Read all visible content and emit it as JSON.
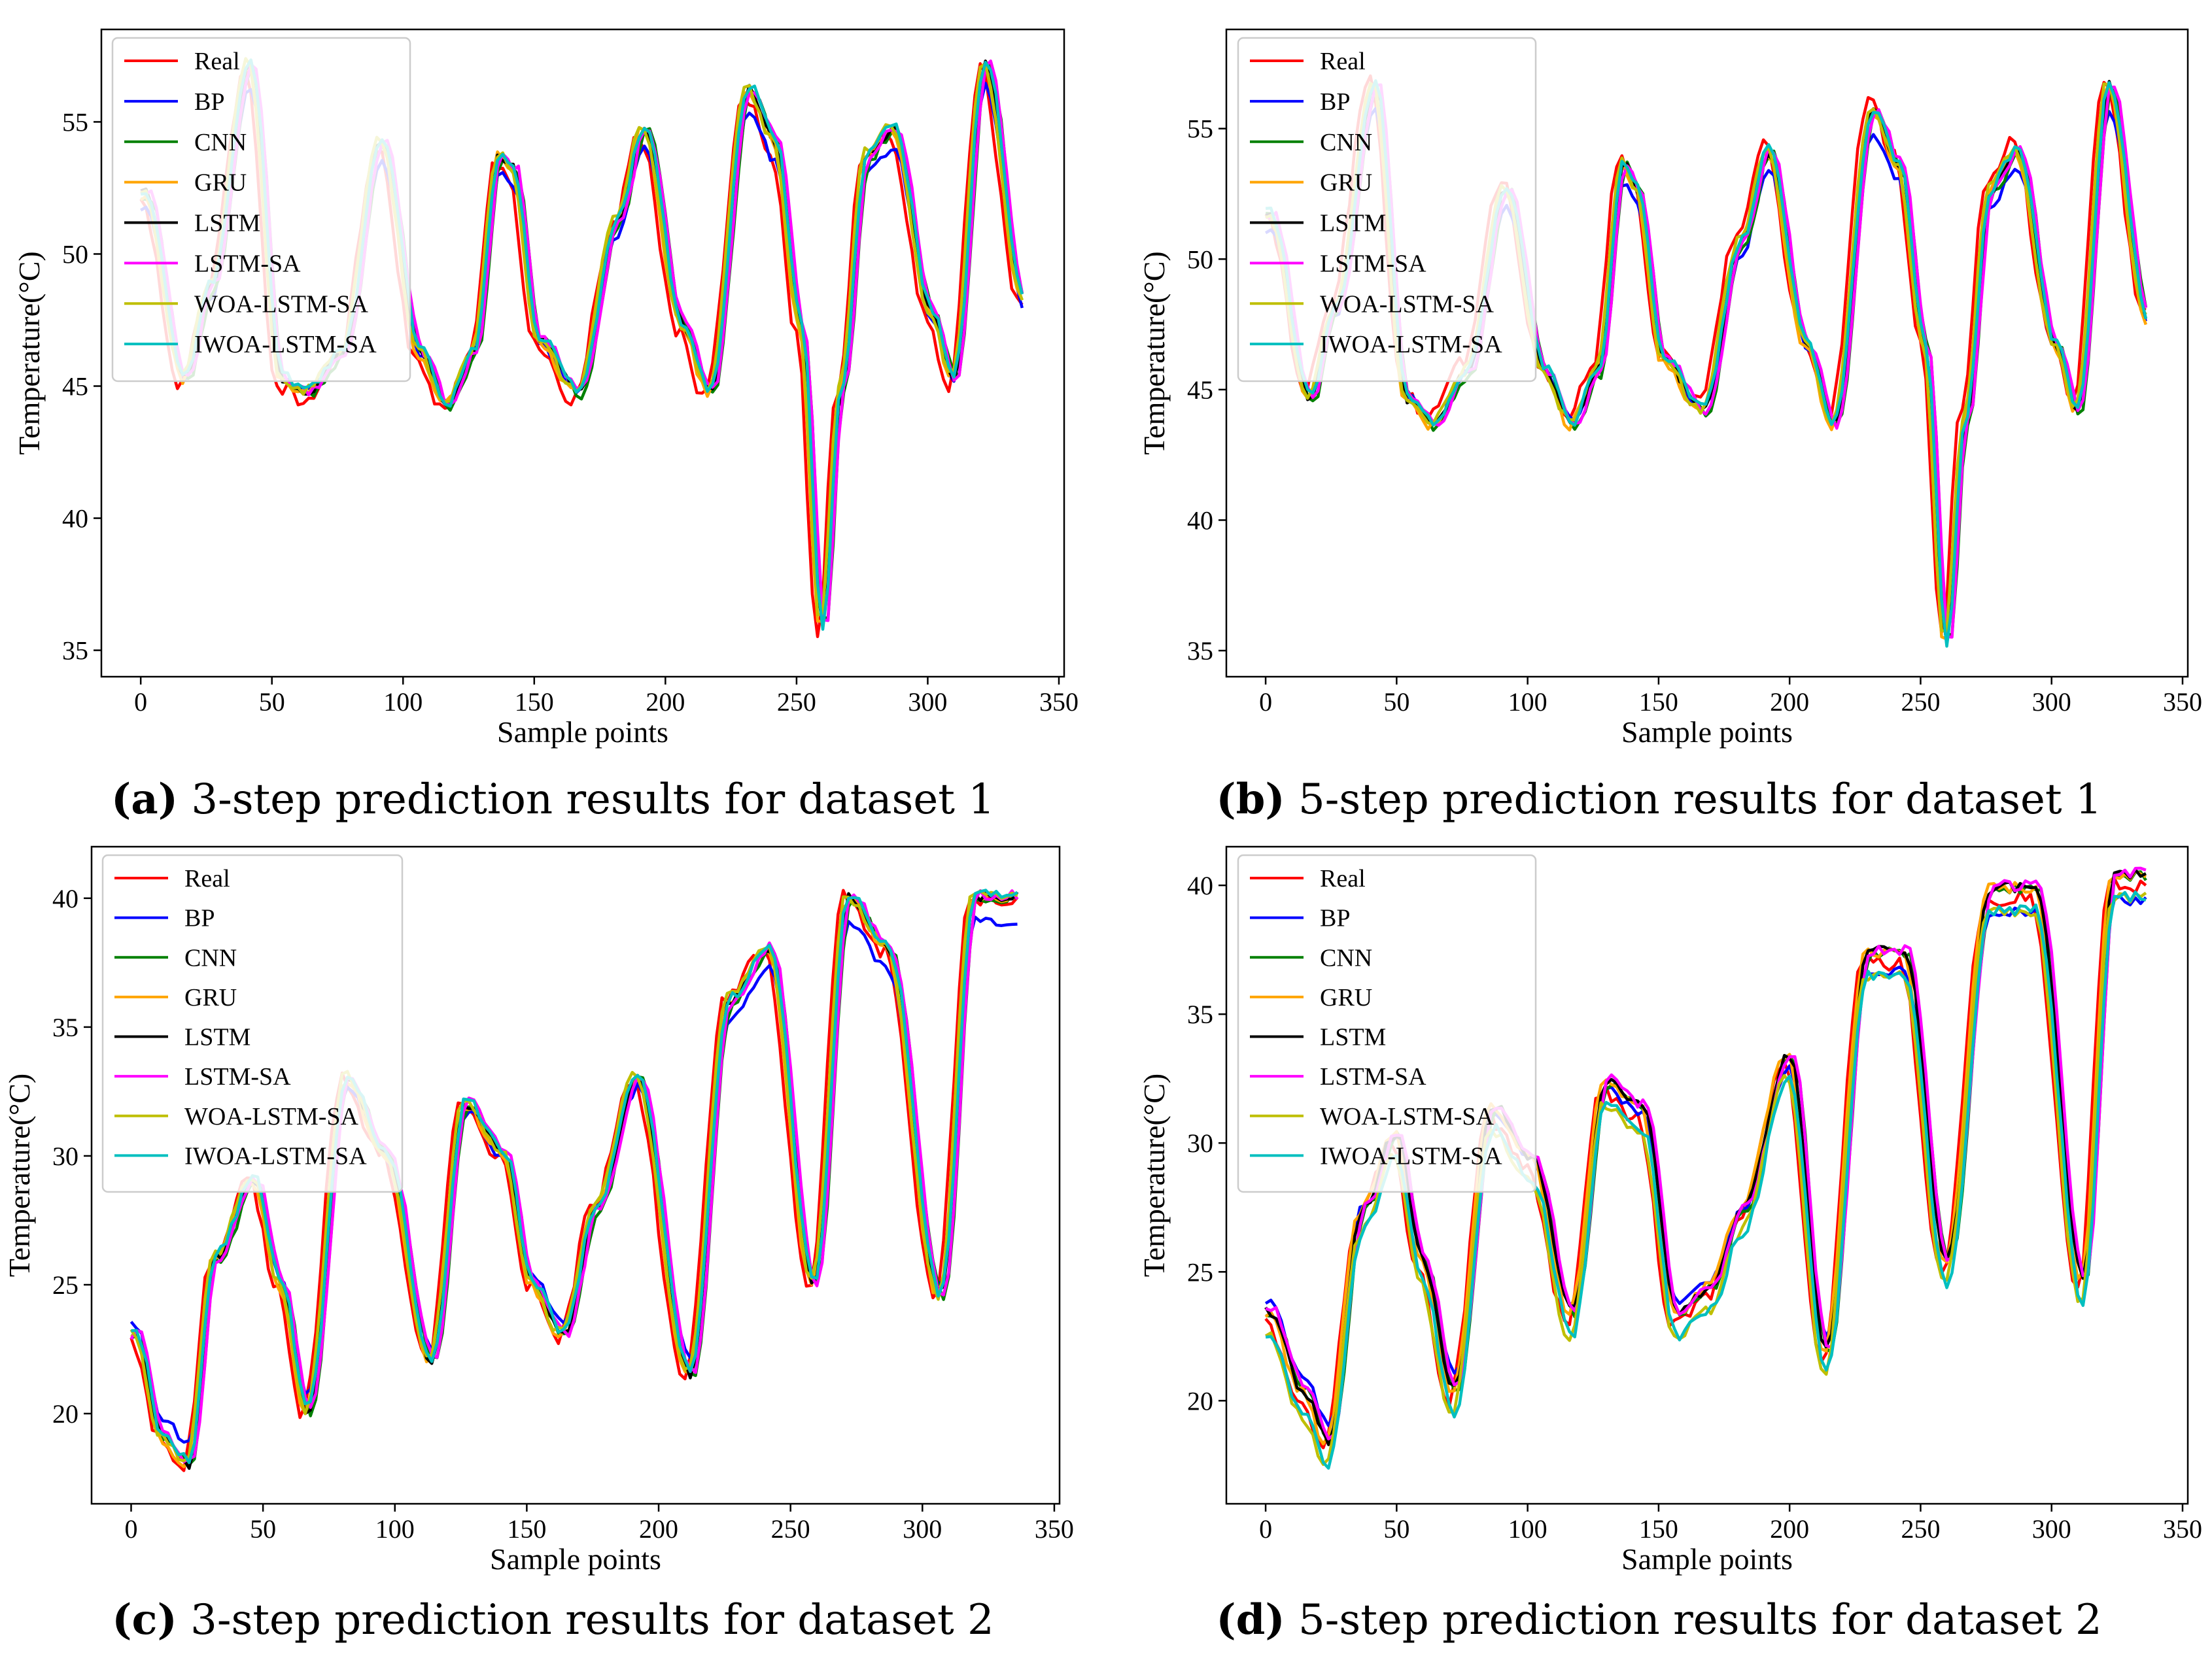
{
  "figure": {
    "colors": {
      "Real": "#ff0000",
      "BP": "#0000ff",
      "CNN": "#008000",
      "GRU": "#ffa500",
      "LSTM": "#000000",
      "LSTM-SA": "#ff00ff",
      "WOA-LSTM-SA": "#bfbf00",
      "IWOA-LSTM-SA": "#00bfbf"
    }
  },
  "captions": [
    {
      "letter": "(a)",
      "text": "3-step prediction results for dataset 1"
    },
    {
      "letter": "(b)",
      "text": "5-step prediction results for dataset 1"
    },
    {
      "letter": "(c)",
      "text": "3-step prediction results for dataset 2"
    },
    {
      "letter": "(d)",
      "text": "5-step prediction results for dataset 2"
    }
  ],
  "chart_data": [
    {
      "type": "line",
      "id": "a",
      "xlabel": "Sample points",
      "ylabel": "Temperature(°C)",
      "xlim": [
        -15,
        352
      ],
      "ylim": [
        34,
        58.5
      ],
      "xticks": [
        0,
        50,
        100,
        150,
        200,
        250,
        300,
        350
      ],
      "yticks": [
        35,
        40,
        45,
        50,
        55
      ],
      "legend": "top-left",
      "series_names": [
        "Real",
        "BP",
        "CNN",
        "GRU",
        "LSTM",
        "LSTM-SA",
        "WOA-LSTM-SA",
        "IWOA-LSTM-SA"
      ],
      "x": [
        0,
        15,
        25,
        40,
        52,
        62,
        75,
        90,
        105,
        115,
        125,
        135,
        140,
        150,
        165,
        180,
        190,
        205,
        215,
        230,
        240,
        250,
        258,
        265,
        275,
        285,
        300,
        308,
        320,
        335
      ],
      "real_y": [
        52,
        45,
        48.5,
        57,
        45,
        44.5,
        46,
        54,
        46,
        44,
        46,
        53.5,
        53,
        46.5,
        44.5,
        51,
        54.5,
        47,
        44.5,
        56,
        54,
        47,
        35.5,
        44.5,
        53.5,
        54.5,
        47.5,
        45,
        57,
        48
      ]
    },
    {
      "type": "line",
      "id": "b",
      "xlabel": "Sample points",
      "ylabel": "Temperature(°C)",
      "xlim": [
        -15,
        352
      ],
      "ylim": [
        34,
        58.8
      ],
      "xticks": [
        0,
        50,
        100,
        150,
        200,
        250,
        300,
        350
      ],
      "yticks": [
        35,
        40,
        45,
        50,
        55
      ],
      "legend": "top-left",
      "series_names": [
        "Real",
        "BP",
        "CNN",
        "GRU",
        "LSTM",
        "LSTM-SA",
        "WOA-LSTM-SA",
        "IWOA-LSTM-SA"
      ],
      "x": [
        0,
        15,
        25,
        40,
        52,
        62,
        75,
        90,
        105,
        115,
        125,
        135,
        140,
        150,
        165,
        180,
        190,
        205,
        215,
        230,
        240,
        250,
        258,
        265,
        275,
        285,
        300,
        308,
        320,
        335
      ],
      "real_y": [
        52,
        45,
        48.5,
        57,
        45,
        44,
        46,
        53,
        46,
        44,
        46,
        54,
        53,
        46.5,
        44.5,
        51,
        54.5,
        47,
        44,
        56,
        54,
        47,
        35.5,
        44,
        53,
        54.5,
        47,
        44.5,
        57,
        48
      ]
    },
    {
      "type": "line",
      "id": "c",
      "xlabel": "Sample points",
      "ylabel": "Temperature(°C)",
      "xlim": [
        -15,
        352
      ],
      "ylim": [
        16.5,
        42
      ],
      "xticks": [
        0,
        50,
        100,
        150,
        200,
        250,
        300,
        350
      ],
      "yticks": [
        20,
        25,
        30,
        35,
        40
      ],
      "legend": "top-left",
      "series_names": [
        "Real",
        "BP",
        "CNN",
        "GRU",
        "LSTM",
        "LSTM-SA",
        "WOA-LSTM-SA",
        "IWOA-LSTM-SA"
      ],
      "x": [
        0,
        10,
        20,
        30,
        45,
        55,
        65,
        80,
        95,
        112,
        125,
        140,
        150,
        162,
        175,
        190,
        210,
        225,
        240,
        257,
        270,
        285,
        305,
        318,
        335
      ],
      "real_y": [
        23,
        19,
        18,
        26,
        29,
        25,
        20,
        33,
        30,
        22,
        32,
        30,
        25,
        23,
        28,
        33,
        21.5,
        36,
        38,
        25,
        40,
        38,
        24.5,
        40,
        40
      ]
    },
    {
      "type": "line",
      "id": "d",
      "xlabel": "Sample points",
      "ylabel": "Temperature(°C)",
      "xlim": [
        -15,
        352
      ],
      "ylim": [
        16,
        41.5
      ],
      "xticks": [
        0,
        50,
        100,
        150,
        200,
        250,
        300,
        350
      ],
      "yticks": [
        20,
        25,
        30,
        35,
        40
      ],
      "legend": "top-left",
      "series_names": [
        "Real",
        "BP",
        "CNN",
        "GRU",
        "LSTM",
        "LSTM-SA",
        "WOA-LSTM-SA",
        "IWOA-LSTM-SA"
      ],
      "x": [
        0,
        12,
        22,
        35,
        48,
        58,
        70,
        85,
        100,
        115,
        128,
        142,
        155,
        168,
        180,
        198,
        212,
        228,
        242,
        258,
        275,
        292,
        310,
        322,
        335
      ],
      "real_y": [
        23,
        20,
        18,
        27,
        30,
        25,
        20,
        31,
        29,
        23,
        32,
        31,
        23,
        24,
        27,
        33,
        21.5,
        37,
        37,
        25,
        39.5,
        39.5,
        24.3,
        40,
        40
      ]
    }
  ]
}
